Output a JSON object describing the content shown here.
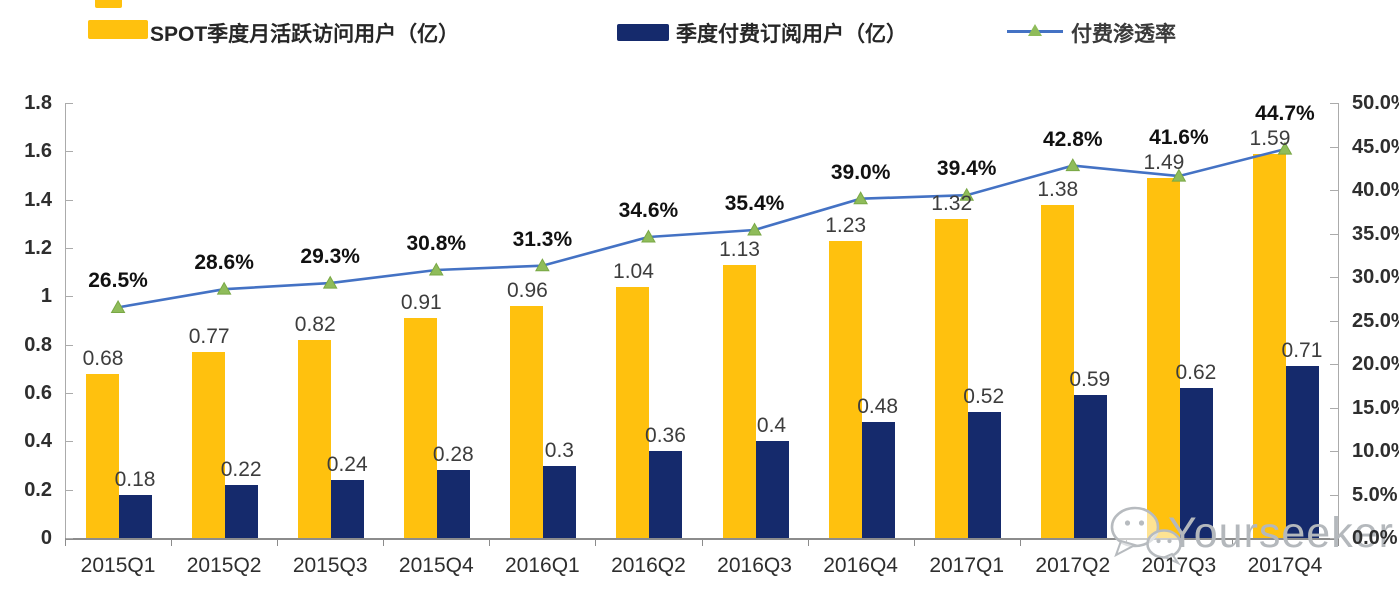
{
  "legend": {
    "items": [
      {
        "label": "SPOT季度月活跃访问用户（亿）",
        "color": "#FFC10E",
        "type": "bar"
      },
      {
        "label": "季度付费订阅用户（亿）",
        "color": "#152A6C",
        "type": "bar"
      },
      {
        "label": "付费渗透率",
        "color": "#4472C4",
        "marker_color": "#8FBC5A",
        "marker_edge": "#79A845",
        "type": "line"
      }
    ]
  },
  "chart_data": {
    "type": "bar",
    "subtype": "combo-bar-line",
    "grid": false,
    "legend_position": "top",
    "categories": [
      "2015Q1",
      "2015Q2",
      "2015Q3",
      "2015Q4",
      "2016Q1",
      "2016Q2",
      "2016Q3",
      "2016Q4",
      "2017Q1",
      "2017Q2",
      "2017Q3",
      "2017Q4"
    ],
    "series": [
      {
        "name": "SPOT季度月活跃访问用户（亿）",
        "type": "bar",
        "axis": "left",
        "color": "#FFC10E",
        "values": [
          0.68,
          0.77,
          0.82,
          0.91,
          0.96,
          1.04,
          1.13,
          1.23,
          1.32,
          1.38,
          1.49,
          1.59
        ],
        "labels": [
          "0.68",
          "0.77",
          "0.82",
          "0.91",
          "0.96",
          "1.04",
          "1.13",
          "1.23",
          "1.32",
          "1.38",
          "1.49",
          "1.59"
        ]
      },
      {
        "name": "季度付费订阅用户（亿）",
        "type": "bar",
        "axis": "left",
        "color": "#152A6C",
        "values": [
          0.18,
          0.22,
          0.24,
          0.28,
          0.3,
          0.36,
          0.4,
          0.48,
          0.52,
          0.59,
          0.62,
          0.71
        ],
        "labels": [
          "0.18",
          "0.22",
          "0.24",
          "0.28",
          "0.3",
          "0.36",
          "0.4",
          "0.48",
          "0.52",
          "0.59",
          "0.62",
          "0.71"
        ]
      },
      {
        "name": "付费渗透率",
        "type": "line",
        "axis": "right",
        "color": "#4472C4",
        "marker": "triangle",
        "marker_color": "#8FBC5A",
        "marker_edge": "#79A845",
        "values": [
          26.5,
          28.6,
          29.3,
          30.8,
          31.3,
          34.6,
          35.4,
          39.0,
          39.4,
          42.8,
          41.6,
          44.7
        ],
        "labels": [
          "26.5%",
          "28.6%",
          "29.3%",
          "30.8%",
          "31.3%",
          "34.6%",
          "35.4%",
          "39.0%",
          "39.4%",
          "42.8%",
          "41.6%",
          "44.7%"
        ]
      }
    ],
    "left_axis": {
      "min": 0,
      "max": 1.8,
      "step": 0.2,
      "tick_labels": [
        "0",
        "0.2",
        "0.4",
        "0.6",
        "0.8",
        "1",
        "1.2",
        "1.4",
        "1.6",
        "1.8"
      ]
    },
    "right_axis": {
      "min": 0,
      "max": 50,
      "step": 5,
      "tick_labels": [
        "0.0%",
        "5.0%",
        "10.0%",
        "15.0%",
        "20.0%",
        "25.0%",
        "30.0%",
        "35.0%",
        "40.0%",
        "45.0%",
        "50.0%"
      ]
    }
  },
  "watermark": {
    "text": "Yourseeker",
    "icon": "wechat-bubbles-icon",
    "color": "#b4b8bc"
  }
}
